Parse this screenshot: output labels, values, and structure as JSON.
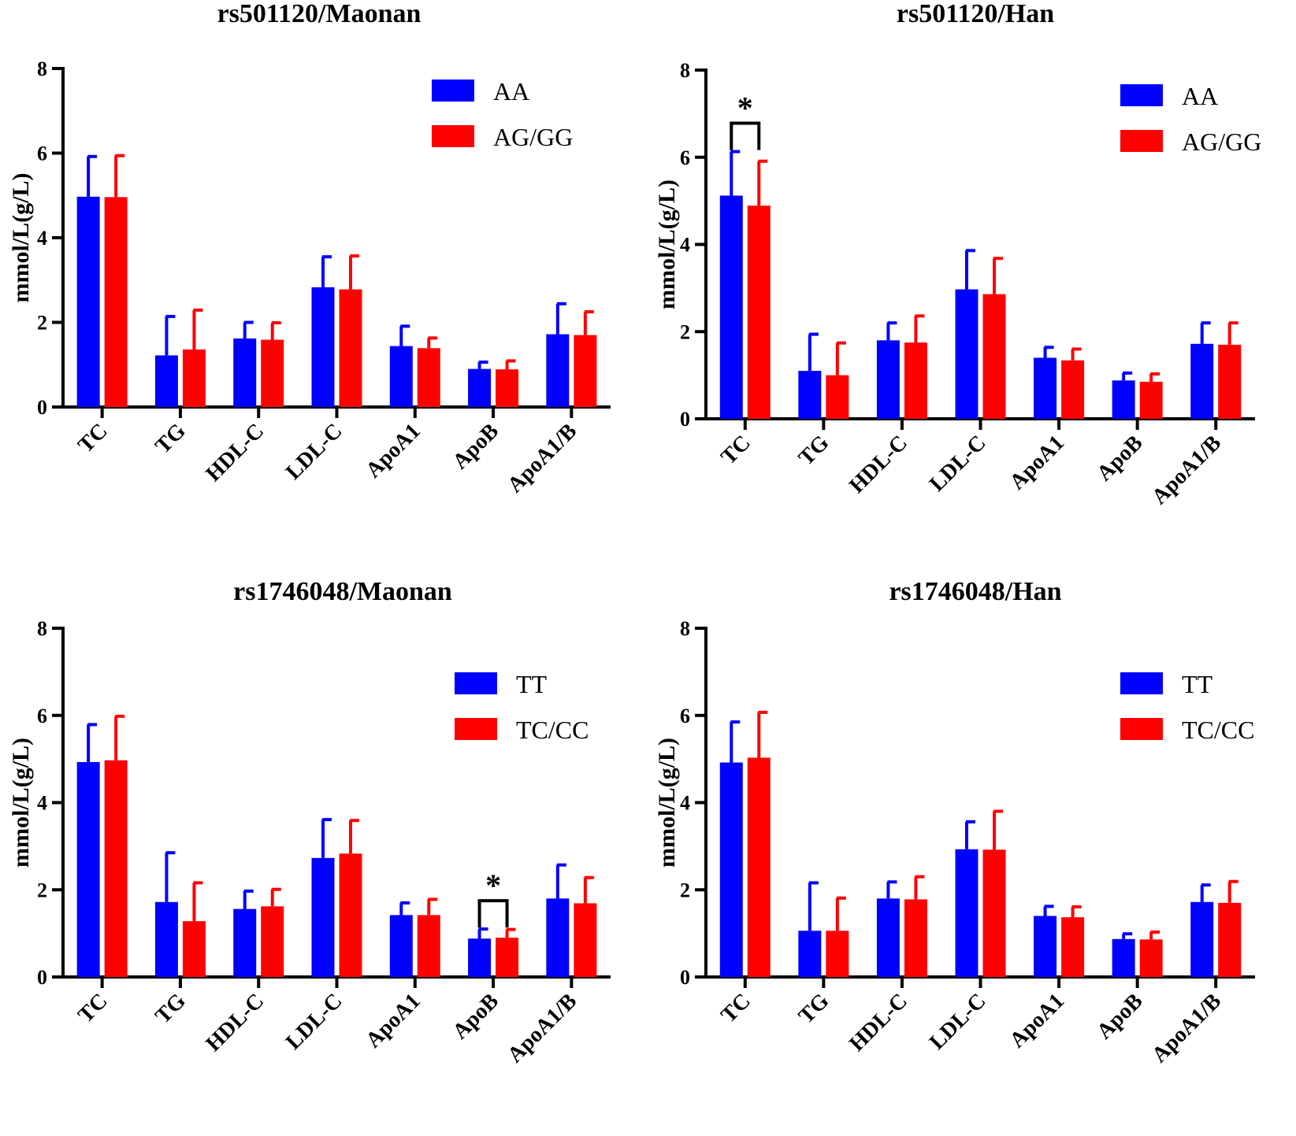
{
  "colors": {
    "series1": "#0000ff",
    "series2": "#ff0000",
    "axis": "#000000"
  },
  "chart_data": [
    {
      "type": "bar",
      "title": "rs501120/Maonan",
      "ylabel": "mmol/L(g/L)",
      "xlabel": "",
      "ylim": [
        0,
        8
      ],
      "yticks": [
        "0",
        "2",
        "4",
        "6",
        "8"
      ],
      "categories": [
        "TC",
        "TG",
        "HDL-C",
        "LDL-C",
        "ApoA1",
        "ApoB",
        "ApoA1/B"
      ],
      "legend_position": "top-right",
      "series": [
        {
          "name": "AA",
          "values": [
            4.97,
            1.22,
            1.62,
            2.83,
            1.44,
            0.9,
            1.72
          ],
          "errors": [
            0.95,
            0.92,
            0.38,
            0.72,
            0.47,
            0.16,
            0.72
          ]
        },
        {
          "name": "AG/GG",
          "values": [
            4.96,
            1.36,
            1.59,
            2.78,
            1.39,
            0.89,
            1.7
          ],
          "errors": [
            0.98,
            0.93,
            0.4,
            0.79,
            0.24,
            0.2,
            0.55
          ]
        }
      ],
      "significance": []
    },
    {
      "type": "bar",
      "title": "rs501120/Han",
      "ylabel": "mmol/L(g/L)",
      "xlabel": "",
      "ylim": [
        0,
        8
      ],
      "yticks": [
        "0",
        "2",
        "4",
        "6",
        "8"
      ],
      "categories": [
        "TC",
        "TG",
        "HDL-C",
        "LDL-C",
        "ApoA1",
        "ApoB",
        "ApoA1/B"
      ],
      "legend_position": "top-right",
      "series": [
        {
          "name": "AA",
          "values": [
            5.12,
            1.1,
            1.8,
            2.97,
            1.4,
            0.88,
            1.72
          ],
          "errors": [
            1.01,
            0.84,
            0.4,
            0.89,
            0.24,
            0.17,
            0.48
          ]
        },
        {
          "name": "AG/GG",
          "values": [
            4.89,
            1.0,
            1.75,
            2.86,
            1.34,
            0.85,
            1.7
          ],
          "errors": [
            1.02,
            0.74,
            0.61,
            0.82,
            0.26,
            0.18,
            0.5
          ]
        }
      ],
      "significance": [
        {
          "category_index": 0,
          "label": "*"
        }
      ]
    },
    {
      "type": "bar",
      "title": "rs1746048/Maonan",
      "ylabel": "mmol/L(g/L)",
      "xlabel": "",
      "ylim": [
        0,
        8
      ],
      "yticks": [
        "0",
        "2",
        "4",
        "6",
        "8"
      ],
      "categories": [
        "TC",
        "TG",
        "HDL-C",
        "LDL-C",
        "ApoA1",
        "ApoB",
        "ApoA1/B"
      ],
      "legend_position": "top-right",
      "series": [
        {
          "name": "TT",
          "values": [
            4.93,
            1.72,
            1.56,
            2.73,
            1.42,
            0.88,
            1.8
          ],
          "errors": [
            0.86,
            1.13,
            0.41,
            0.88,
            0.28,
            0.22,
            0.77
          ]
        },
        {
          "name": "TC/CC",
          "values": [
            4.97,
            1.28,
            1.62,
            2.83,
            1.42,
            0.9,
            1.69
          ],
          "errors": [
            1.01,
            0.88,
            0.39,
            0.76,
            0.36,
            0.19,
            0.59
          ]
        }
      ],
      "significance": [
        {
          "category_index": 5,
          "label": "*"
        }
      ]
    },
    {
      "type": "bar",
      "title": "rs1746048/Han",
      "ylabel": "mmol/L(g/L)",
      "xlabel": "",
      "ylim": [
        0,
        8
      ],
      "yticks": [
        "0",
        "2",
        "4",
        "6",
        "8"
      ],
      "categories": [
        "TC",
        "TG",
        "HDL-C",
        "LDL-C",
        "ApoA1",
        "ApoB",
        "ApoA1/B"
      ],
      "legend_position": "top-right",
      "series": [
        {
          "name": "TT",
          "values": [
            4.92,
            1.06,
            1.8,
            2.93,
            1.4,
            0.87,
            1.72
          ],
          "errors": [
            0.93,
            1.1,
            0.38,
            0.63,
            0.22,
            0.12,
            0.39
          ]
        },
        {
          "name": "TC/CC",
          "values": [
            5.03,
            1.06,
            1.78,
            2.92,
            1.37,
            0.86,
            1.7
          ],
          "errors": [
            1.04,
            0.75,
            0.52,
            0.88,
            0.24,
            0.17,
            0.49
          ]
        }
      ],
      "significance": []
    }
  ]
}
